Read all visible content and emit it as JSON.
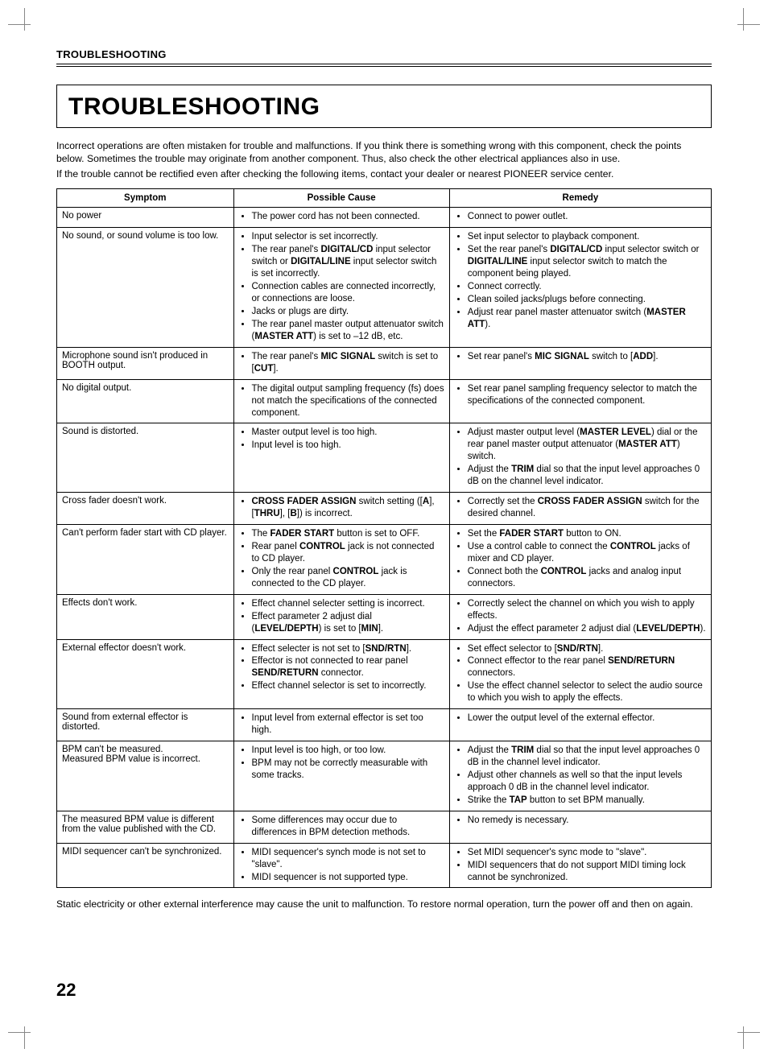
{
  "runningHead": "TROUBLESHOOTING",
  "title": "TROUBLESHOOTING",
  "intro": [
    "Incorrect operations are often mistaken for trouble and malfunctions. If you think there is something wrong with this component, check the points below. Sometimes the trouble may originate from another component. Thus, also check the other electrical appliances also in use.",
    "If the trouble cannot be rectified even after checking the following items, contact your dealer or nearest PIONEER service center."
  ],
  "headers": {
    "c1": "Symptom",
    "c2": "Possible Cause",
    "c3": "Remedy"
  },
  "rows": [
    {
      "symptom": "No power",
      "cause": [
        "The power cord has not been connected."
      ],
      "remedy": [
        "Connect to power outlet."
      ]
    },
    {
      "symptom": "No sound, or sound volume is too low.",
      "cause": [
        "Input selector is set incorrectly.",
        "The rear panel's <b>DIGITAL/CD</b> input selector switch or <b>DIGITAL/LINE</b> input selector switch is set incorrectly.",
        "Connection cables are connected incorrectly, or connections are loose.",
        "Jacks or plugs are dirty.",
        "The rear panel master output attenuator switch (<b>MASTER ATT</b>) is set to –12 dB, etc."
      ],
      "remedy": [
        "Set input selector to playback component.",
        "Set the rear panel's <b>DIGITAL/CD</b> input selector switch or <b>DIGITAL/LINE</b> input selector switch to match the component being played.",
        "Connect correctly.",
        "Clean soiled jacks/plugs before connecting.",
        "Adjust rear panel master attenuator switch (<b>MASTER ATT</b>)."
      ]
    },
    {
      "symptom": "Microphone sound isn't produced in BOOTH output.",
      "cause": [
        "The rear panel's <b>MIC SIGNAL</b> switch is set to [<b>CUT</b>]."
      ],
      "remedy": [
        "Set rear panel's <b>MIC SIGNAL</b> switch to [<b>ADD</b>]."
      ]
    },
    {
      "symptom": "No digital output.",
      "cause": [
        "The digital output sampling frequency (fs) does not match the specifications of the connected component."
      ],
      "remedy": [
        "Set rear panel sampling frequency selector to match the specifications of the connected component."
      ]
    },
    {
      "symptom": "Sound is distorted.",
      "cause": [
        "Master output level is too high.",
        "Input level is too high."
      ],
      "remedy": [
        "Adjust master output level (<b>MASTER LEVEL</b>) dial or the rear panel master output attenuator (<b>MASTER ATT</b>) switch.",
        "Adjust the <b>TRIM</b> dial so that the input level approaches 0 dB on the channel level indicator."
      ]
    },
    {
      "symptom": "Cross fader doesn't work.",
      "cause": [
        "<b>CROSS FADER ASSIGN</b> switch setting ([<b>A</b>], [<b>THRU</b>], [<b>B</b>]) is incorrect."
      ],
      "remedy": [
        "Correctly set the <b>CROSS FADER ASSIGN</b> switch for the desired channel."
      ]
    },
    {
      "symptom": "Can't perform fader start with CD player.",
      "cause": [
        "The <b>FADER START</b> button is set to OFF.",
        "Rear panel <b>CONTROL</b> jack is not connected to CD player.",
        "Only the rear panel <b>CONTROL</b> jack is connected to the CD player."
      ],
      "remedy": [
        "Set the <b>FADER START</b> button to ON.",
        "Use a control cable to connect the <b>CONTROL</b> jacks of mixer and CD player.",
        "Connect both the <b>CONTROL</b> jacks and analog input connectors."
      ]
    },
    {
      "symptom": "Effects don't work.",
      "cause": [
        "Effect channel selecter setting is incorrect.",
        "Effect parameter 2 adjust dial (<b>LEVEL/DEPTH</b>) is set to [<b>MIN</b>]."
      ],
      "remedy": [
        "Correctly select the channel on which you wish to apply effects.",
        "Adjust the effect parameter 2 adjust dial (<b>LEVEL/DEPTH</b>)."
      ]
    },
    {
      "symptom": "External effector doesn't work.",
      "cause": [
        "Effect selecter is not set to [<b>SND/RTN</b>].",
        "Effector is not connected to rear panel <b>SEND/RETURN</b> connector.",
        "Effect channel selector is set to incorrectly."
      ],
      "remedy": [
        "Set effect selector to [<b>SND/RTN</b>].",
        "Connect effector to the rear panel <b>SEND/RETURN</b> connectors.",
        "Use the effect channel selector to select the audio source to which you wish to apply the effects."
      ]
    },
    {
      "symptom": "Sound from external effector is distorted.",
      "cause": [
        "Input level from external effector is set too high."
      ],
      "remedy": [
        "Lower the output level of the external effector."
      ]
    },
    {
      "symptom": "BPM can't be measured.\nMeasured BPM value is incorrect.",
      "cause": [
        "Input level is too high, or too low.",
        "BPM may not be correctly measurable with some tracks."
      ],
      "remedy": [
        "Adjust the <b>TRIM</b> dial so that the input level approaches 0 dB in the channel level indicator.",
        "Adjust other channels as well so that the input levels approach 0 dB in the channel level indicator.",
        "Strike the <b>TAP</b> button to set BPM manually."
      ]
    },
    {
      "symptom": "The measured BPM value is different from the value published with the CD.",
      "cause": [
        "Some differences may occur due to differences in BPM detection methods."
      ],
      "remedy": [
        "No remedy is necessary."
      ]
    },
    {
      "symptom": "MIDI sequencer can't be synchronized.",
      "cause": [
        "MIDI sequencer's synch mode is not set to \"slave\".",
        "MIDI sequencer is not supported type."
      ],
      "remedy": [
        "Set MIDI sequencer's sync mode to \"slave\".",
        "MIDI sequencers that do not support MIDI timing lock cannot be synchronized."
      ]
    }
  ],
  "outro": "Static electricity or other external interference may cause the unit to malfunction. To restore normal operation, turn the power off and then on again.",
  "pageNumber": "22"
}
